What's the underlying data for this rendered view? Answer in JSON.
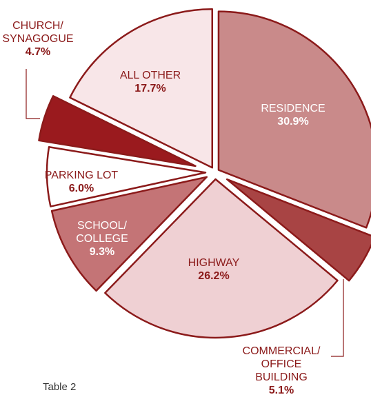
{
  "chart_data": {
    "type": "pie",
    "categories": [
      "RESIDENCE",
      "COMMERCIAL/\nOFFICE BUILDING",
      "HIGHWAY",
      "SCHOOL/\nCOLLEGE",
      "PARKING LOT",
      "CHURCH/\nSYNAGOGUE",
      "ALL OTHER"
    ],
    "values": [
      30.9,
      5.1,
      26.2,
      9.3,
      6.0,
      4.7,
      17.7
    ],
    "value_labels": [
      "30.9%",
      "5.1%",
      "26.2%",
      "9.3%",
      "6.0%",
      "4.7%",
      "17.7%"
    ],
    "colors": [
      "#c98a8a",
      "#a84444",
      "#efd0d3",
      "#c47476",
      "#ffffff",
      "#9a1a1e",
      "#f8e6e8"
    ],
    "caption": "Table 2"
  }
}
